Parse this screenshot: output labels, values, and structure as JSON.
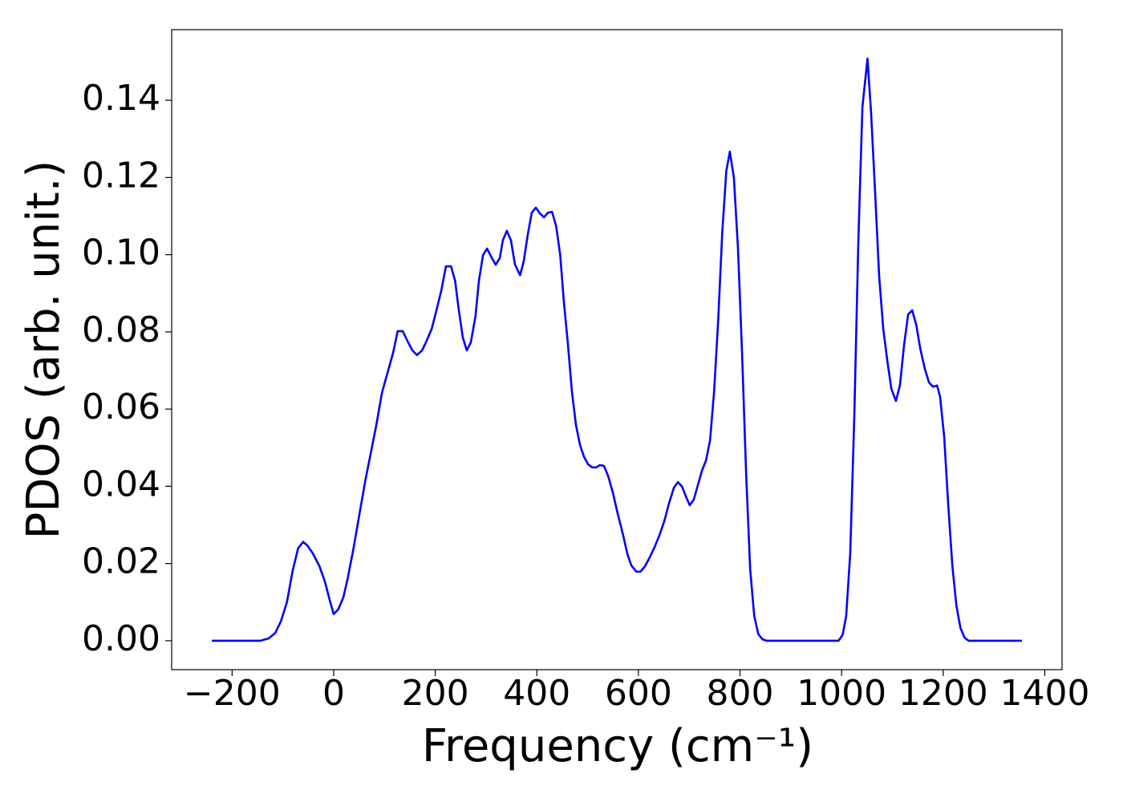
{
  "chart_data": {
    "type": "line",
    "xlabel": "Frequency (cm⁻¹)",
    "ylabel": "PDOS (arb. unit.)",
    "color": "#0000ff",
    "x": [
      -240,
      -144,
      -128,
      -115,
      -104,
      -92,
      -81,
      -70,
      -60,
      -52,
      -41,
      -28,
      -17,
      -8,
      0,
      9,
      19,
      28,
      39,
      51,
      62,
      73,
      84,
      95,
      106,
      117,
      126,
      136,
      145,
      155,
      164,
      174,
      183,
      193,
      202,
      212,
      221,
      231,
      239,
      246,
      254,
      262,
      270,
      279,
      286,
      294,
      302,
      310,
      319,
      327,
      333,
      341,
      349,
      357,
      367,
      374,
      382,
      390,
      398,
      406,
      414,
      422,
      430,
      438,
      446,
      453,
      461,
      469,
      477,
      485,
      493,
      501,
      509,
      517,
      524,
      532,
      540,
      550,
      559,
      569,
      578,
      586,
      596,
      604,
      613,
      623,
      632,
      641,
      651,
      660,
      670,
      678,
      686,
      694,
      701,
      709,
      717,
      725,
      733,
      741,
      749,
      757,
      765,
      773,
      780,
      788,
      796,
      804,
      812,
      820,
      828,
      836,
      844,
      852,
      994,
      1002,
      1009,
      1017,
      1025,
      1033,
      1041,
      1051,
      1058,
      1066,
      1074,
      1082,
      1090,
      1098,
      1107,
      1115,
      1123,
      1131,
      1139,
      1147,
      1155,
      1164,
      1172,
      1180,
      1188,
      1194,
      1202,
      1210,
      1218,
      1226,
      1234,
      1242,
      1250,
      1355
    ],
    "values": [
      0,
      0,
      0.0006,
      0.002,
      0.005,
      0.01,
      0.018,
      0.024,
      0.0256,
      0.0247,
      0.0226,
      0.0193,
      0.0152,
      0.0106,
      0.0069,
      0.0081,
      0.0112,
      0.0164,
      0.0239,
      0.033,
      0.0413,
      0.0486,
      0.0559,
      0.0642,
      0.0694,
      0.0746,
      0.0802,
      0.0802,
      0.0777,
      0.0752,
      0.074,
      0.0752,
      0.0777,
      0.0808,
      0.0854,
      0.0908,
      0.097,
      0.097,
      0.0933,
      0.086,
      0.0787,
      0.0752,
      0.0773,
      0.0839,
      0.0933,
      0.0999,
      0.1016,
      0.0995,
      0.0974,
      0.0991,
      0.1037,
      0.1062,
      0.1037,
      0.0974,
      0.0947,
      0.0982,
      0.1051,
      0.1109,
      0.1122,
      0.1107,
      0.1097,
      0.1109,
      0.1111,
      0.1074,
      0.0999,
      0.0881,
      0.0771,
      0.0646,
      0.0559,
      0.0507,
      0.0476,
      0.0457,
      0.0449,
      0.0449,
      0.0455,
      0.0453,
      0.0428,
      0.0382,
      0.033,
      0.0278,
      0.0226,
      0.0195,
      0.0179,
      0.0179,
      0.0193,
      0.0218,
      0.0243,
      0.0272,
      0.031,
      0.0355,
      0.0397,
      0.0411,
      0.0399,
      0.0372,
      0.0351,
      0.0366,
      0.0403,
      0.044,
      0.0467,
      0.0519,
      0.0646,
      0.0829,
      0.1057,
      0.1217,
      0.1267,
      0.1199,
      0.1016,
      0.0746,
      0.0434,
      0.0185,
      0.0064,
      0.0017,
      0.0004,
      0,
      0,
      0.0015,
      0.0064,
      0.0226,
      0.058,
      0.1037,
      0.1383,
      0.1508,
      0.1369,
      0.1161,
      0.0943,
      0.0808,
      0.0725,
      0.0652,
      0.0621,
      0.0663,
      0.0766,
      0.0845,
      0.0856,
      0.0818,
      0.0756,
      0.0704,
      0.0669,
      0.0658,
      0.0661,
      0.0631,
      0.0528,
      0.0351,
      0.0195,
      0.0091,
      0.0033,
      0.0008,
      0,
      0
    ],
    "xlim": [
      -319,
      1434
    ],
    "ylim": [
      -0.0075,
      0.1583
    ],
    "xticks": [
      {
        "value": -200,
        "label": "−200"
      },
      0,
      200,
      400,
      600,
      800,
      1000,
      1200,
      1400
    ],
    "yticks": [
      {
        "value": 0,
        "label": "0.00"
      },
      {
        "value": 0.02,
        "label": "0.02"
      },
      {
        "value": 0.04,
        "label": "0.04"
      },
      {
        "value": 0.06,
        "label": "0.06"
      },
      {
        "value": 0.08,
        "label": "0.08"
      },
      {
        "value": 0.1,
        "label": "0.10"
      },
      {
        "value": 0.12,
        "label": "0.12"
      },
      {
        "value": 0.14,
        "label": "0.14"
      }
    ],
    "grid": false
  }
}
